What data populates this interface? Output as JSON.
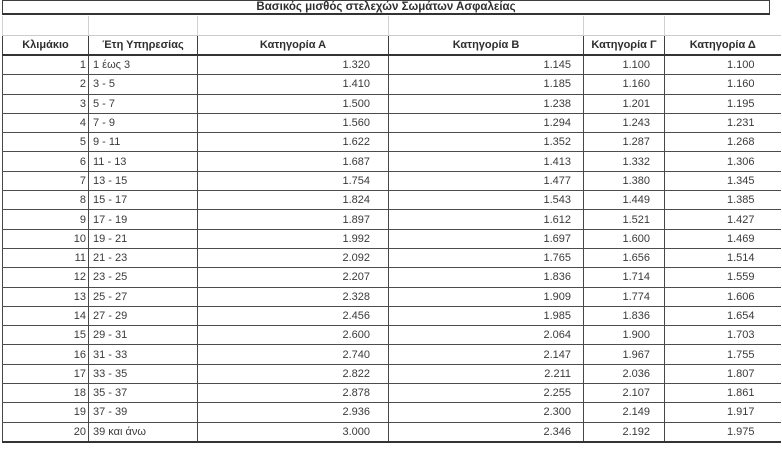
{
  "chart_data": {
    "type": "table",
    "title": "Βασικός μισθός στελεχών Σωμάτων Ασφαλείας",
    "columns": [
      "Κλιμάκιο",
      "Έτη Υπηρεσίας",
      "Κατηγορία Α",
      "Κατηγορία Β",
      "Κατηγορία Γ",
      "Κατηγορία Δ"
    ],
    "column_keys": [
      "klimakio",
      "eti-ypiresias",
      "katigoria-a",
      "katigoria-b",
      "katigoria-g",
      "katigoria-d"
    ],
    "rows": [
      [
        "1",
        "1 έως 3",
        "1.320",
        "1.145",
        "1.100",
        "1.100"
      ],
      [
        "2",
        "3 - 5",
        "1.410",
        "1.185",
        "1.160",
        "1.160"
      ],
      [
        "3",
        "5 - 7",
        "1.500",
        "1.238",
        "1.201",
        "1.195"
      ],
      [
        "4",
        "7 - 9",
        "1.560",
        "1.294",
        "1.243",
        "1.231"
      ],
      [
        "5",
        "9 - 11",
        "1.622",
        "1.352",
        "1.287",
        "1.268"
      ],
      [
        "6",
        "11 - 13",
        "1.687",
        "1.413",
        "1.332",
        "1.306"
      ],
      [
        "7",
        "13 - 15",
        "1.754",
        "1.477",
        "1.380",
        "1.345"
      ],
      [
        "8",
        "15 - 17",
        "1.824",
        "1.543",
        "1.449",
        "1.385"
      ],
      [
        "9",
        "17 - 19",
        "1.897",
        "1.612",
        "1.521",
        "1.427"
      ],
      [
        "10",
        "19 - 21",
        "1.992",
        "1.697",
        "1.600",
        "1.469"
      ],
      [
        "11",
        "21 - 23",
        "2.092",
        "1.765",
        "1.656",
        "1.514"
      ],
      [
        "12",
        "23 - 25",
        "2.207",
        "1.836",
        "1.714",
        "1.559"
      ],
      [
        "13",
        "25 - 27",
        "2.328",
        "1.909",
        "1.774",
        "1.606"
      ],
      [
        "14",
        "27 - 29",
        "2.456",
        "1.985",
        "1.836",
        "1.654"
      ],
      [
        "15",
        "29 - 31",
        "2.600",
        "2.064",
        "1.900",
        "1.703"
      ],
      [
        "16",
        "31 - 33",
        "2.740",
        "2.147",
        "1.967",
        "1.755"
      ],
      [
        "17",
        "33 - 35",
        "2.822",
        "2.211",
        "2.036",
        "1.807"
      ],
      [
        "18",
        "35 - 37",
        "2.878",
        "2.255",
        "2.107",
        "1.861"
      ],
      [
        "19",
        "37 - 39",
        "2.936",
        "2.300",
        "2.149",
        "1.917"
      ],
      [
        "20",
        "39 και άνω",
        "3.000",
        "2.346",
        "2.192",
        "1.975"
      ]
    ],
    "layout": {
      "grid": true,
      "title_position": "top-center-boxed",
      "number_format": "thousands-dot-separator"
    }
  }
}
